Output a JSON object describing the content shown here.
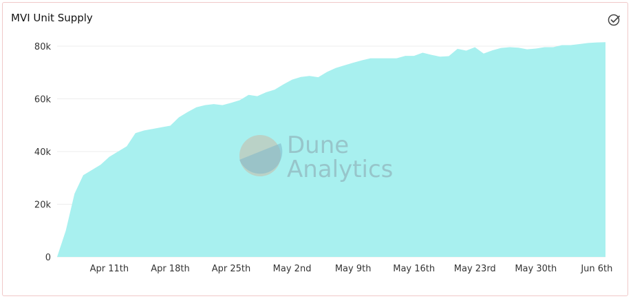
{
  "title": "MVI Unit Supply",
  "watermark": {
    "line1": "Dune",
    "line2": "Analytics"
  },
  "icons": {
    "status": "check-circle-icon"
  },
  "colors": {
    "area": "#a8f0ef",
    "grid": "#ececec",
    "border": "#f0c8c8"
  },
  "chart_data": {
    "type": "area",
    "title": "MVI Unit Supply",
    "xlabel": "",
    "ylabel": "",
    "ylim": [
      0,
      80000
    ],
    "grid": true,
    "y_ticks": [
      {
        "value": 0,
        "label": "0"
      },
      {
        "value": 20000,
        "label": "20k"
      },
      {
        "value": 40000,
        "label": "40k"
      },
      {
        "value": 60000,
        "label": "60k"
      },
      {
        "value": 80000,
        "label": "80k"
      }
    ],
    "x_ticks": [
      {
        "day": 6,
        "label": "Apr 11th"
      },
      {
        "day": 13,
        "label": "Apr 18th"
      },
      {
        "day": 20,
        "label": "Apr 25th"
      },
      {
        "day": 27,
        "label": "May 2nd"
      },
      {
        "day": 34,
        "label": "May 9th"
      },
      {
        "day": 41,
        "label": "May 16th"
      },
      {
        "day": 48,
        "label": "May 23rd"
      },
      {
        "day": 55,
        "label": "May 30th"
      },
      {
        "day": 62,
        "label": "Jun 6th"
      }
    ],
    "series": [
      {
        "x": [
          0,
          1,
          2,
          3,
          4,
          5,
          6,
          7,
          8,
          9,
          10,
          11,
          12,
          13,
          14,
          15,
          16,
          17,
          18,
          19,
          20,
          21,
          22,
          23,
          24,
          25,
          26,
          27,
          28,
          29,
          30,
          31,
          32,
          33,
          34,
          35,
          36,
          37,
          38,
          39,
          40,
          41,
          42,
          43,
          44,
          45,
          46,
          47,
          48,
          49,
          50,
          51,
          52,
          53,
          54,
          55,
          56,
          57,
          58,
          59,
          60,
          61,
          62,
          63
        ],
        "values": [
          0,
          10000,
          24000,
          31000,
          33000,
          35000,
          38000,
          40000,
          42000,
          47000,
          48000,
          48600,
          49200,
          49800,
          53000,
          55000,
          56800,
          57600,
          58000,
          57600,
          58500,
          59500,
          61500,
          61000,
          62500,
          63500,
          65500,
          67300,
          68300,
          68700,
          68200,
          70200,
          71700,
          72700,
          73700,
          74600,
          75400,
          75400,
          75400,
          75400,
          76300,
          76300,
          77500,
          76700,
          76000,
          76200,
          79000,
          78300,
          79600,
          77200,
          78400,
          79300,
          79600,
          79400,
          78800,
          79100,
          79600,
          79600,
          80400,
          80400,
          80800,
          81200,
          81400,
          81500
        ]
      }
    ]
  }
}
